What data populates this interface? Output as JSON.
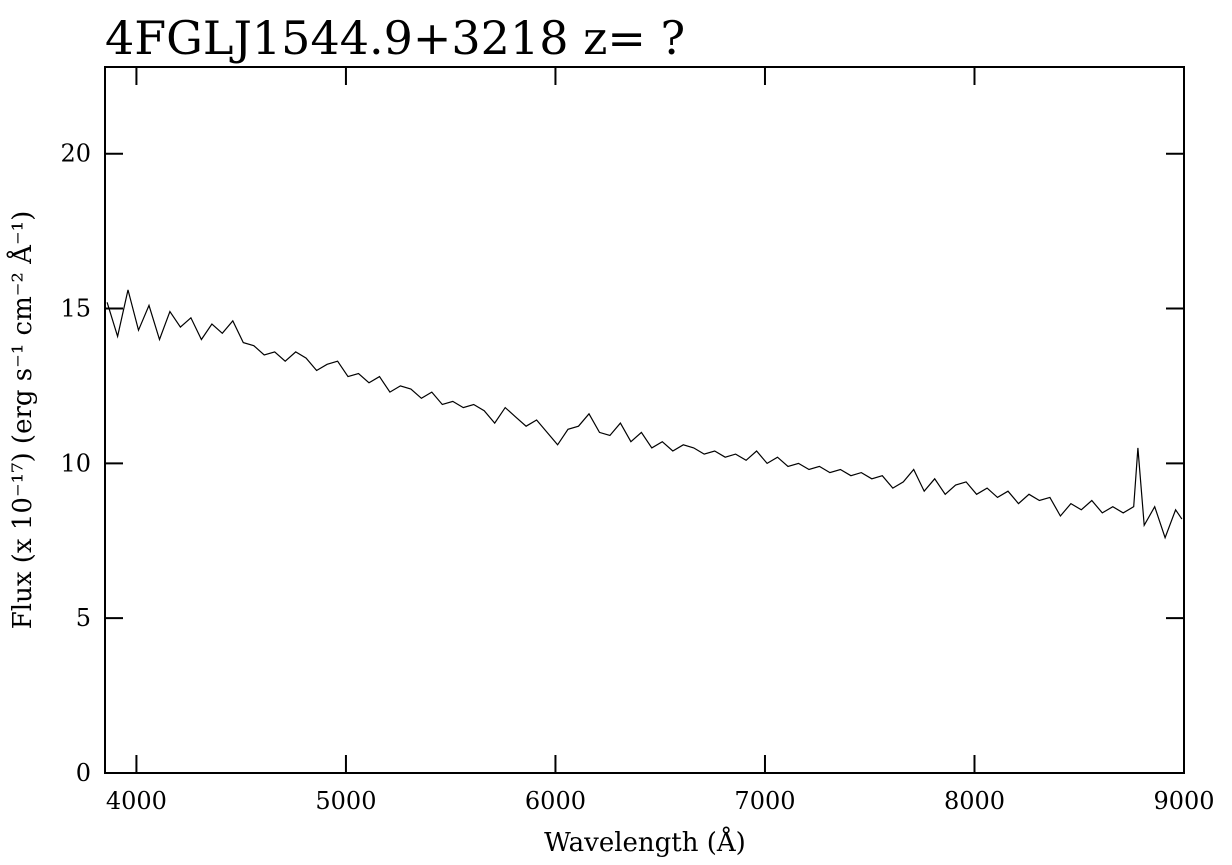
{
  "chart_data": {
    "type": "line",
    "title": "4FGLJ1544.9+3218 z= ?",
    "x_label": "Wavelength (Å)",
    "y_label": "Flux (x 10⁻¹⁷) (erg s⁻¹ cm⁻² Å⁻¹)",
    "color": "#000000",
    "xlim": [
      3850,
      9000
    ],
    "ylim": [
      0,
      22.8
    ],
    "xticks": [
      4000,
      5000,
      6000,
      7000,
      8000,
      9000
    ],
    "yticks": [
      0,
      5,
      10,
      15,
      20
    ],
    "x": [
      3860,
      3910,
      3960,
      4010,
      4060,
      4110,
      4160,
      4210,
      4260,
      4310,
      4360,
      4410,
      4460,
      4510,
      4560,
      4610,
      4660,
      4710,
      4760,
      4810,
      4860,
      4910,
      4960,
      5010,
      5060,
      5110,
      5160,
      5210,
      5260,
      5310,
      5360,
      5410,
      5460,
      5510,
      5560,
      5610,
      5660,
      5710,
      5760,
      5810,
      5860,
      5910,
      5960,
      6010,
      6060,
      6110,
      6160,
      6210,
      6260,
      6310,
      6360,
      6410,
      6460,
      6510,
      6560,
      6610,
      6660,
      6710,
      6760,
      6810,
      6860,
      6910,
      6960,
      7010,
      7060,
      7110,
      7160,
      7210,
      7260,
      7310,
      7360,
      7410,
      7460,
      7510,
      7560,
      7610,
      7660,
      7710,
      7760,
      7810,
      7860,
      7910,
      7960,
      8010,
      8060,
      8110,
      8160,
      8210,
      8260,
      8310,
      8360,
      8410,
      8460,
      8510,
      8560,
      8610,
      8660,
      8710,
      8760,
      8780,
      8810,
      8860,
      8910,
      8960,
      8990
    ],
    "values": [
      15.2,
      14.1,
      15.6,
      14.3,
      15.1,
      14.0,
      14.9,
      14.4,
      14.7,
      14.0,
      14.5,
      14.2,
      14.6,
      13.9,
      13.8,
      13.5,
      13.6,
      13.3,
      13.6,
      13.4,
      13.0,
      13.2,
      13.3,
      12.8,
      12.9,
      12.6,
      12.8,
      12.3,
      12.5,
      12.4,
      12.1,
      12.3,
      11.9,
      12.0,
      11.8,
      11.9,
      11.7,
      11.3,
      11.8,
      11.5,
      11.2,
      11.4,
      11.0,
      10.6,
      11.1,
      11.2,
      11.6,
      11.0,
      10.9,
      11.3,
      10.7,
      11.0,
      10.5,
      10.7,
      10.4,
      10.6,
      10.5,
      10.3,
      10.4,
      10.2,
      10.3,
      10.1,
      10.4,
      10.0,
      10.2,
      9.9,
      10.0,
      9.8,
      9.9,
      9.7,
      9.8,
      9.6,
      9.7,
      9.5,
      9.6,
      9.2,
      9.4,
      9.8,
      9.1,
      9.5,
      9.0,
      9.3,
      9.4,
      9.0,
      9.2,
      8.9,
      9.1,
      8.7,
      9.0,
      8.8,
      8.9,
      8.3,
      8.7,
      8.5,
      8.8,
      8.4,
      8.6,
      8.4,
      8.6,
      10.5,
      8.0,
      8.6,
      7.6,
      8.5,
      8.2
    ]
  }
}
